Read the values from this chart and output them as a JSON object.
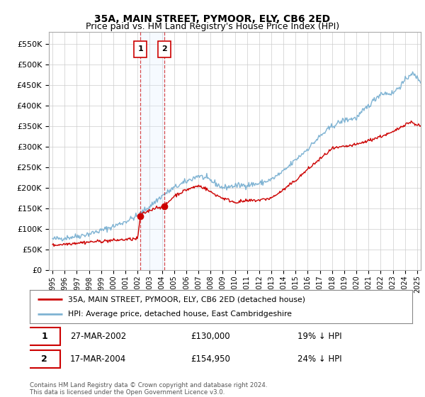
{
  "title": "35A, MAIN STREET, PYMOOR, ELY, CB6 2ED",
  "subtitle": "Price paid vs. HM Land Registry's House Price Index (HPI)",
  "ylabel_ticks": [
    "£0",
    "£50K",
    "£100K",
    "£150K",
    "£200K",
    "£250K",
    "£300K",
    "£350K",
    "£400K",
    "£450K",
    "£500K",
    "£550K"
  ],
  "ytick_vals": [
    0,
    50000,
    100000,
    150000,
    200000,
    250000,
    300000,
    350000,
    400000,
    450000,
    500000,
    550000
  ],
  "ylim": [
    0,
    580000
  ],
  "xmin": 1994.7,
  "xmax": 2025.3,
  "background_color": "#ffffff",
  "grid_color": "#cccccc",
  "purchase1_x": 2002.23,
  "purchase1_price": 130000,
  "purchase2_x": 2004.21,
  "purchase2_price": 154950,
  "legend_line1": "35A, MAIN STREET, PYMOOR, ELY, CB6 2ED (detached house)",
  "legend_line2": "HPI: Average price, detached house, East Cambridgeshire",
  "footer": "Contains HM Land Registry data © Crown copyright and database right 2024.\nThis data is licensed under the Open Government Licence v3.0.",
  "red_color": "#cc0000",
  "blue_color": "#7fb3d3",
  "shade_color": "#ddeeff",
  "table_row1": [
    "1",
    "27-MAR-2002",
    "£130,000",
    "19% ↓ HPI"
  ],
  "table_row2": [
    "2",
    "17-MAR-2004",
    "£154,950",
    "24% ↓ HPI"
  ]
}
